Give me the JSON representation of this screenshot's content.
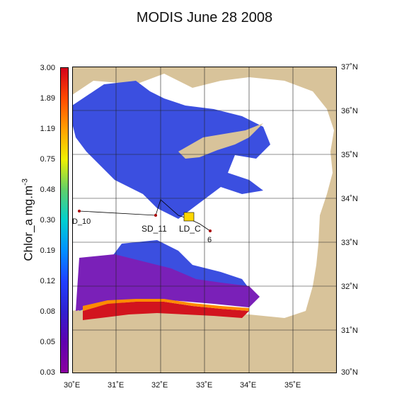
{
  "title": "MODIS June 28 2008",
  "colorbar": {
    "label_prefix": "Chlor_a  mg.m",
    "label_superscript": "-3",
    "ticks": [
      "3.00",
      "1.89",
      "1.19",
      "0.75",
      "0.48",
      "0.30",
      "0.19",
      "0.12",
      "0.08",
      "0.05",
      "0.03"
    ],
    "colors": [
      "#d4001a",
      "#ff4a00",
      "#ffa000",
      "#f0f000",
      "#5fd06a",
      "#00d0d0",
      "#0090ff",
      "#2040ff",
      "#3020d0",
      "#6000b0",
      "#8a00a0"
    ]
  },
  "map": {
    "lon_labels": [
      "30˚E",
      "31˚E",
      "32˚E",
      "33˚E",
      "34˚E",
      "35˚E"
    ],
    "lat_labels": [
      "37˚N",
      "36˚N",
      "35˚N",
      "34˚N",
      "33˚N",
      "32˚N",
      "31˚N",
      "30˚N"
    ],
    "stations": [
      "D_10",
      "SD_11",
      "LD_C",
      "6"
    ],
    "colors": {
      "land": "#d8c39a",
      "sea_high": "#3b4fe0",
      "sea_low": "#7a20b8",
      "coast_bloom": "#d2141e",
      "missing": "#ffffff"
    }
  }
}
